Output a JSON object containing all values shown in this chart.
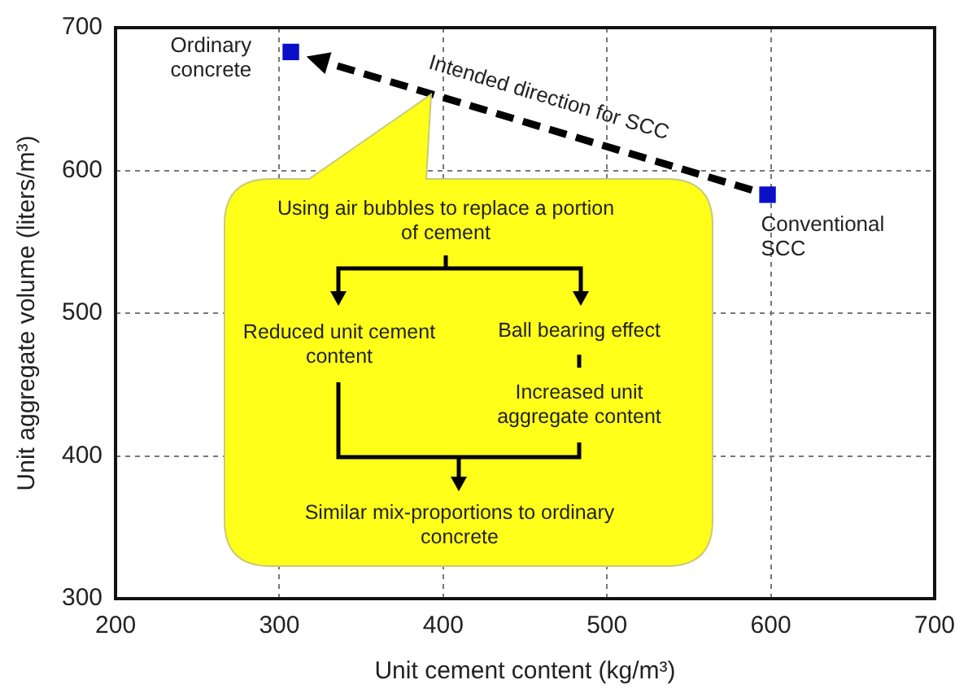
{
  "chart_data": {
    "type": "scatter",
    "xlabel": "Unit cement content (kg/m³)",
    "ylabel": "Unit aggregate volume (liters/m³)",
    "x": [
      307,
      598
    ],
    "values": [
      683,
      583
    ],
    "color": "#0a10c8",
    "marker": "square",
    "xlim": [
      200,
      700
    ],
    "xticks": [
      200,
      300,
      400,
      500,
      600,
      700
    ],
    "ylim": [
      300,
      700
    ],
    "yticks": [
      300,
      400,
      500,
      600,
      700
    ],
    "grid": true,
    "legend": false,
    "annotations": [
      {
        "text": "Ordinary concrete",
        "x": 307,
        "y": 683
      },
      {
        "text": "Conventional SCC",
        "x": 598,
        "y": 583
      },
      "Intended direction for SCC",
      "Using air bubbles to replace a portion of cement",
      "Reduced unit cement content",
      "Ball bearing effect",
      "Increased unit aggregate content",
      "Similar mix-proportions to ordinary concrete"
    ]
  }
}
